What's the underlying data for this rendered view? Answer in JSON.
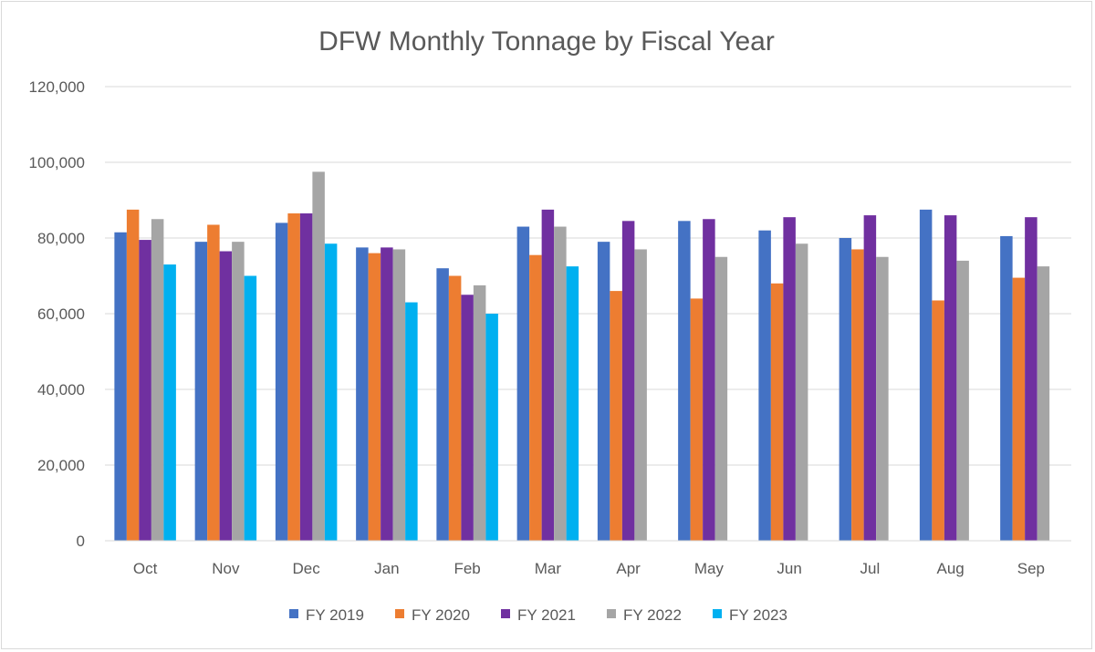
{
  "chart_data": {
    "type": "bar",
    "title": "DFW Monthly Tonnage by Fiscal Year",
    "xlabel": "",
    "ylabel": "",
    "ylim": [
      0,
      120000
    ],
    "yticks": [
      0,
      20000,
      40000,
      60000,
      80000,
      100000,
      120000
    ],
    "ytick_labels": [
      "0",
      "20,000",
      "40,000",
      "60,000",
      "80,000",
      "100,000",
      "120,000"
    ],
    "grid": true,
    "legend_position": "bottom",
    "categories": [
      "Oct",
      "Nov",
      "Dec",
      "Jan",
      "Feb",
      "Mar",
      "Apr",
      "May",
      "Jun",
      "Jul",
      "Aug",
      "Sep"
    ],
    "series": [
      {
        "name": "FY 2019",
        "color": "#4472C4",
        "values": [
          81500,
          79000,
          84000,
          77500,
          72000,
          83000,
          79000,
          84500,
          82000,
          80000,
          87500,
          80500
        ]
      },
      {
        "name": "FY 2020",
        "color": "#ED7D31",
        "values": [
          87500,
          83500,
          86500,
          76000,
          70000,
          75500,
          66000,
          64000,
          68000,
          77000,
          63500,
          69500
        ]
      },
      {
        "name": "FY 2021",
        "color": "#7030A0",
        "values": [
          79500,
          76500,
          86500,
          77500,
          65000,
          87500,
          84500,
          85000,
          85500,
          86000,
          86000,
          85500
        ]
      },
      {
        "name": "FY 2022",
        "color": "#A5A5A5",
        "values": [
          85000,
          79000,
          97500,
          77000,
          67500,
          83000,
          77000,
          75000,
          78500,
          75000,
          74000,
          72500
        ]
      },
      {
        "name": "FY 2023",
        "color": "#00B0F0",
        "values": [
          73000,
          70000,
          78500,
          63000,
          60000,
          72500,
          null,
          null,
          null,
          null,
          null,
          null
        ]
      }
    ]
  }
}
